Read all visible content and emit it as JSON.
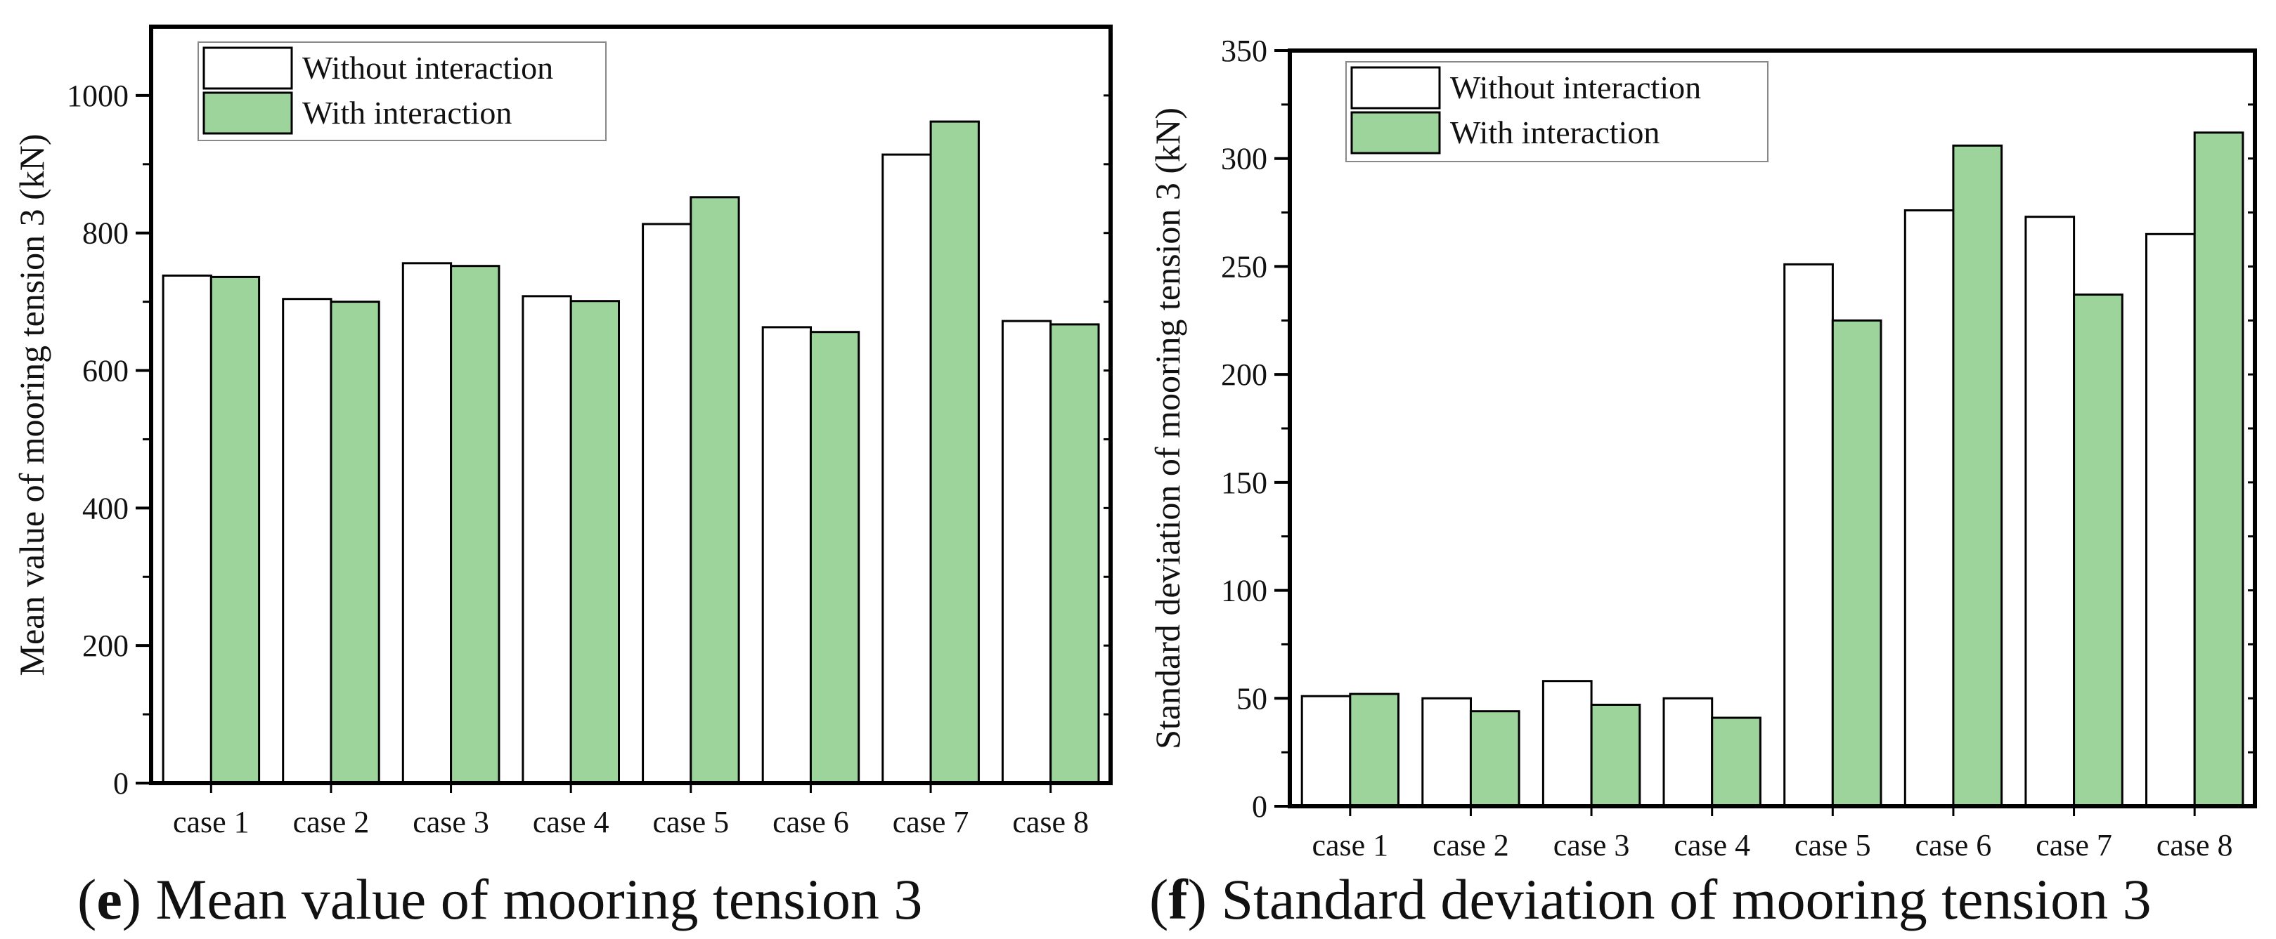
{
  "colors": {
    "without": "#ffffff",
    "with": "#9dd49b",
    "stroke": "#000000"
  },
  "chart_data": [
    {
      "type": "bar",
      "panel_letter": "e",
      "caption": "Mean value of mooring tension 3",
      "title": "",
      "xlabel": "",
      "ylabel": "Mean value of mooring tension 3 (kN)",
      "ylim": [
        0,
        1100
      ],
      "yticks": [
        0,
        200,
        400,
        600,
        800,
        1000
      ],
      "categories": [
        "case 1",
        "case 2",
        "case 3",
        "case 4",
        "case 5",
        "case 6",
        "case 7",
        "case 8"
      ],
      "legend_position": "top-left",
      "series": [
        {
          "name": "Without interaction",
          "values": [
            738,
            704,
            756,
            708,
            813,
            663,
            914,
            672
          ]
        },
        {
          "name": "With interaction",
          "values": [
            736,
            700,
            752,
            701,
            852,
            656,
            962,
            667
          ]
        }
      ]
    },
    {
      "type": "bar",
      "panel_letter": "f",
      "caption": "Standard deviation of mooring tension 3",
      "title": "",
      "xlabel": "",
      "ylabel": "Standard deviation of mooring tension 3 (kN)",
      "ylim": [
        0,
        350
      ],
      "yticks": [
        0,
        50,
        100,
        150,
        200,
        250,
        300,
        350
      ],
      "categories": [
        "case 1",
        "case 2",
        "case 3",
        "case 4",
        "case 5",
        "case 6",
        "case 7",
        "case 8"
      ],
      "legend_position": "top-left",
      "series": [
        {
          "name": "Without interaction",
          "values": [
            51,
            50,
            58,
            50,
            251,
            276,
            273,
            265
          ]
        },
        {
          "name": "With interaction",
          "values": [
            52,
            44,
            47,
            41,
            225,
            306,
            237,
            312
          ]
        }
      ]
    }
  ]
}
